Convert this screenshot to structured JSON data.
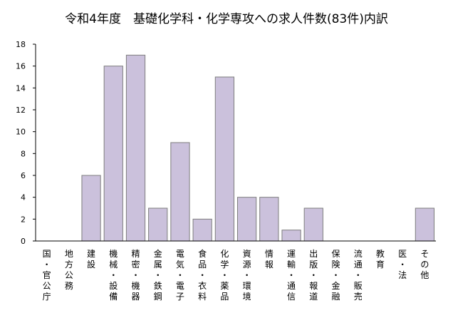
{
  "chart_data": {
    "type": "bar",
    "title": "令和4年度　基礎化学科・化学専攻への求人件数(83件)内訳",
    "xlabel": "",
    "ylabel": "",
    "ylim": [
      0,
      18
    ],
    "yticks": [
      0,
      2,
      4,
      6,
      8,
      10,
      12,
      14,
      16,
      18
    ],
    "grid": false,
    "legend": "none",
    "bar_color": "#cbc1dc",
    "bar_edge_color": "#7d7d7d",
    "categories": [
      "国・官公庁",
      "地方公務",
      "建設",
      "機械・設備",
      "精密・機器",
      "金属・鉄鋼",
      "電気・電子",
      "食品・衣料",
      "化学・薬品",
      "資源・環境",
      "情報",
      "運輸・通信",
      "出版・報道",
      "保険・金融",
      "流通・販売",
      "教育",
      "医・法",
      "その他"
    ],
    "values": [
      0,
      0,
      6,
      16,
      17,
      3,
      9,
      2,
      15,
      4,
      4,
      1,
      3,
      0,
      0,
      0,
      0,
      3
    ]
  }
}
